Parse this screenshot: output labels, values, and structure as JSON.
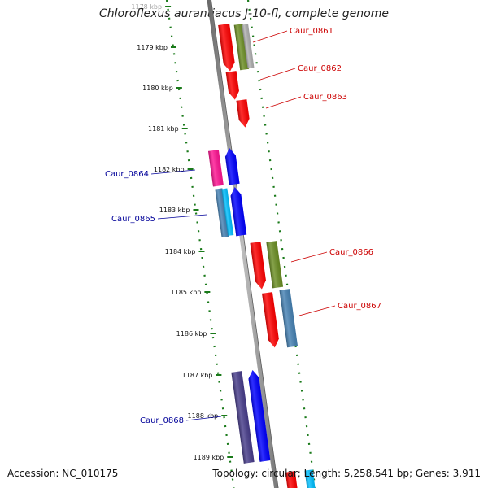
{
  "title": "Chloroflexus aurantiacus J-10-fl, complete genome",
  "footer": {
    "accession": "Accession: NC_010175",
    "summary": "Topology: circular; Length: 5,258,541 bp; Genes: 3,911"
  },
  "colors": {
    "forward_label": "#cc0000",
    "reverse_label": "#000099",
    "tick_dots": "#1a7a1a",
    "backbone": "#8c8c8c"
  },
  "ticks": [
    {
      "label": "1178 kbp",
      "faded": true
    },
    {
      "label": "1179 kbp"
    },
    {
      "label": "1180 kbp"
    },
    {
      "label": "1181 kbp"
    },
    {
      "label": "1182 kbp"
    },
    {
      "label": "1183 kbp"
    },
    {
      "label": "1184 kbp"
    },
    {
      "label": "1185 kbp"
    },
    {
      "label": "1186 kbp"
    },
    {
      "label": "1187 kbp"
    },
    {
      "label": "1188 kbp"
    },
    {
      "label": "1189 kbp"
    }
  ],
  "gene_labels": [
    {
      "text": "Caur_0861",
      "strand": "forward"
    },
    {
      "text": "Caur_0862",
      "strand": "forward"
    },
    {
      "text": "Caur_0863",
      "strand": "forward"
    },
    {
      "text": "Caur_0864",
      "strand": "reverse"
    },
    {
      "text": "Caur_0865",
      "strand": "reverse"
    },
    {
      "text": "Caur_0866",
      "strand": "forward"
    },
    {
      "text": "Caur_0867",
      "strand": "forward"
    },
    {
      "text": "Caur_0868",
      "strand": "reverse"
    }
  ],
  "features": [
    {
      "name": "feature-red",
      "color": "#ff0000"
    },
    {
      "name": "feature-olive",
      "color": "#6b8e23"
    },
    {
      "name": "feature-grey",
      "color": "#b0b0b0"
    },
    {
      "name": "feature-magenta",
      "color": "#ff1493"
    },
    {
      "name": "feature-blue",
      "color": "#0000ff"
    },
    {
      "name": "feature-steelblue",
      "color": "#4682b4"
    },
    {
      "name": "feature-cyan",
      "color": "#00bfff"
    },
    {
      "name": "feature-darkslate",
      "color": "#483d8b"
    }
  ]
}
